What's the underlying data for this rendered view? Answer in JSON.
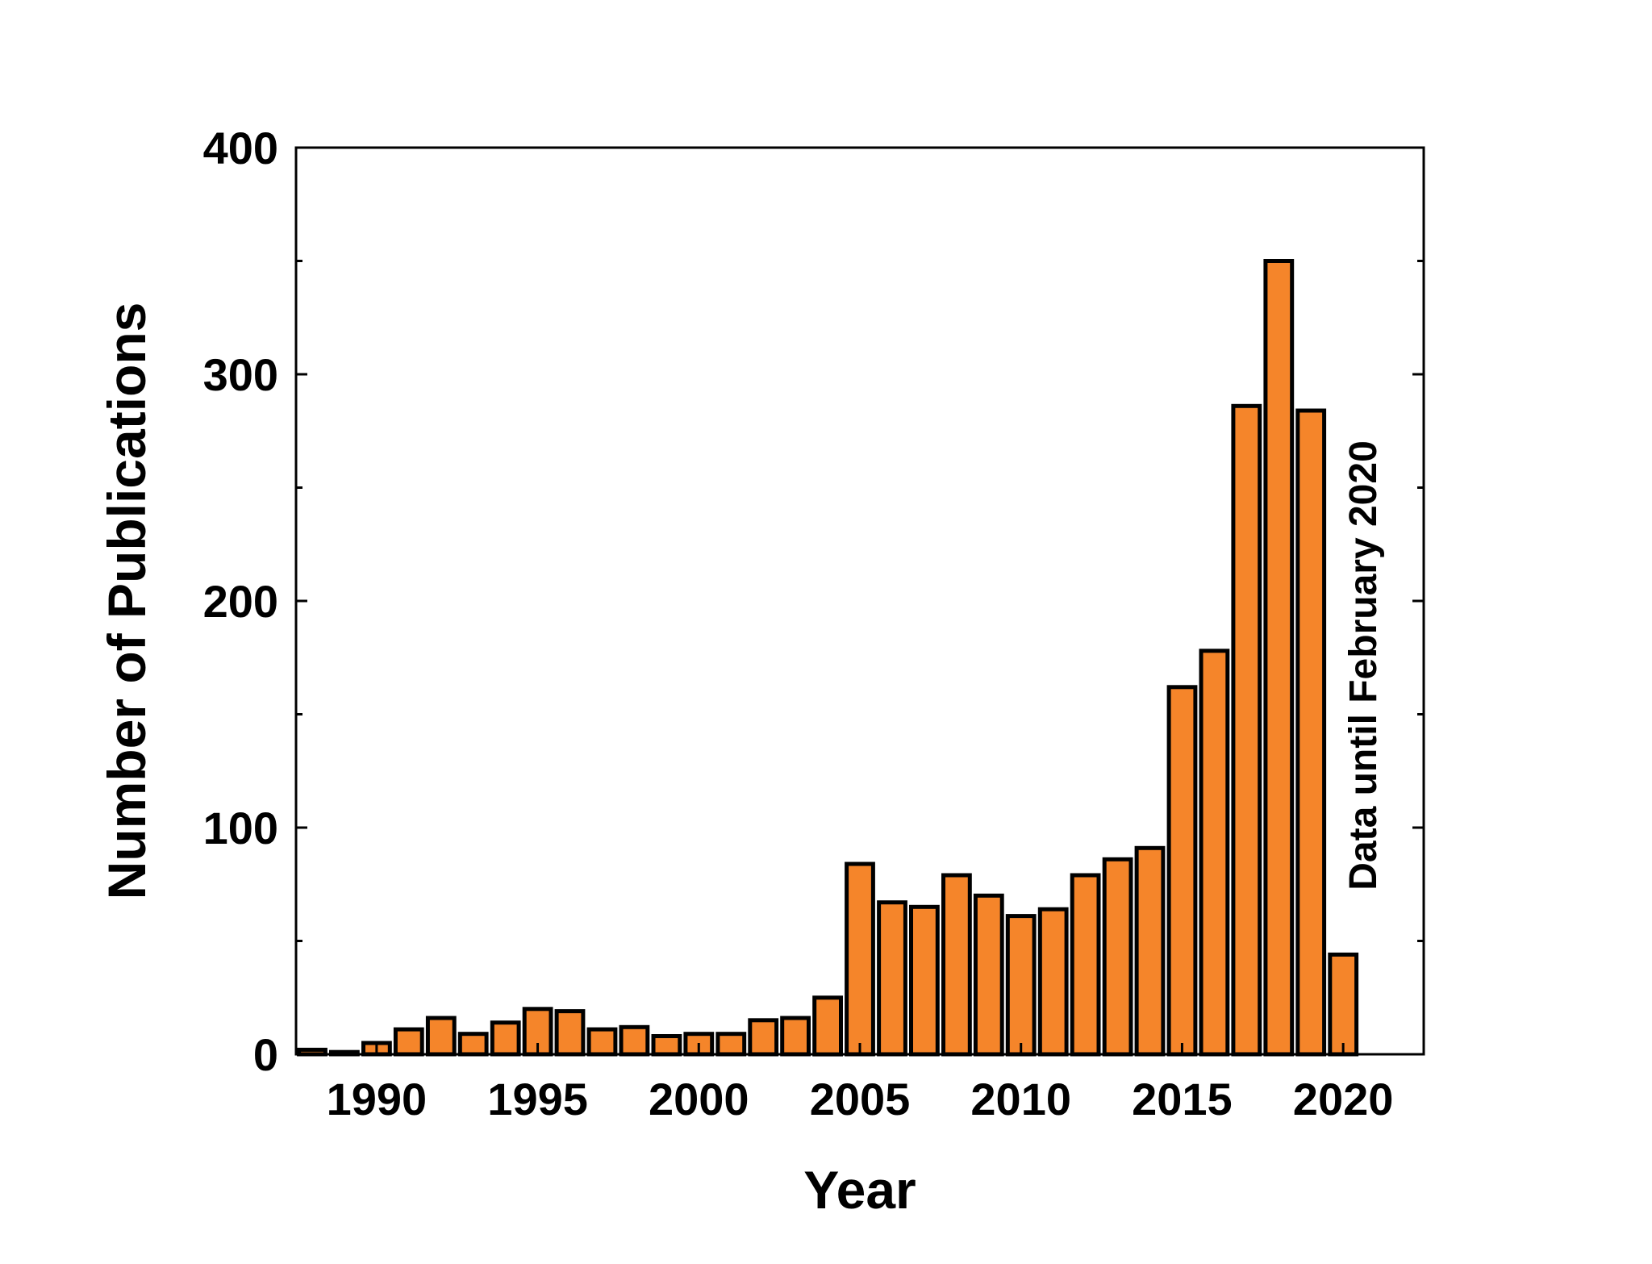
{
  "chart_data": {
    "type": "bar",
    "xlabel": "Year",
    "ylabel": "Number of Publications",
    "annotation": "Data until February 2020",
    "ylim": [
      0,
      400
    ],
    "xlim": [
      1987.5,
      2022.5
    ],
    "y_ticks_major": [
      0,
      100,
      200,
      300,
      400
    ],
    "y_ticks_minor": [
      50,
      150,
      250,
      350
    ],
    "x_ticks_major": [
      1990,
      1995,
      2000,
      2005,
      2010,
      2015,
      2020
    ],
    "x_tick_labels": [
      "1990",
      "1995",
      "2000",
      "2005",
      "2010",
      "2015",
      "2020"
    ],
    "y_tick_labels": [
      "0",
      "100",
      "200",
      "300",
      "400"
    ],
    "bar_color": "#F5852A",
    "edge_color": "#000000",
    "grid": false,
    "categories": [
      1988,
      1989,
      1990,
      1991,
      1992,
      1993,
      1994,
      1995,
      1996,
      1997,
      1998,
      1999,
      2000,
      2001,
      2002,
      2003,
      2004,
      2005,
      2006,
      2007,
      2008,
      2009,
      2010,
      2011,
      2012,
      2013,
      2014,
      2015,
      2016,
      2017,
      2018,
      2019,
      2020
    ],
    "values": [
      2,
      1,
      5,
      11,
      16,
      9,
      14,
      20,
      19,
      11,
      12,
      8,
      9,
      9,
      15,
      16,
      25,
      84,
      67,
      65,
      79,
      70,
      61,
      64,
      79,
      86,
      91,
      162,
      178,
      286,
      350,
      284,
      44
    ]
  }
}
